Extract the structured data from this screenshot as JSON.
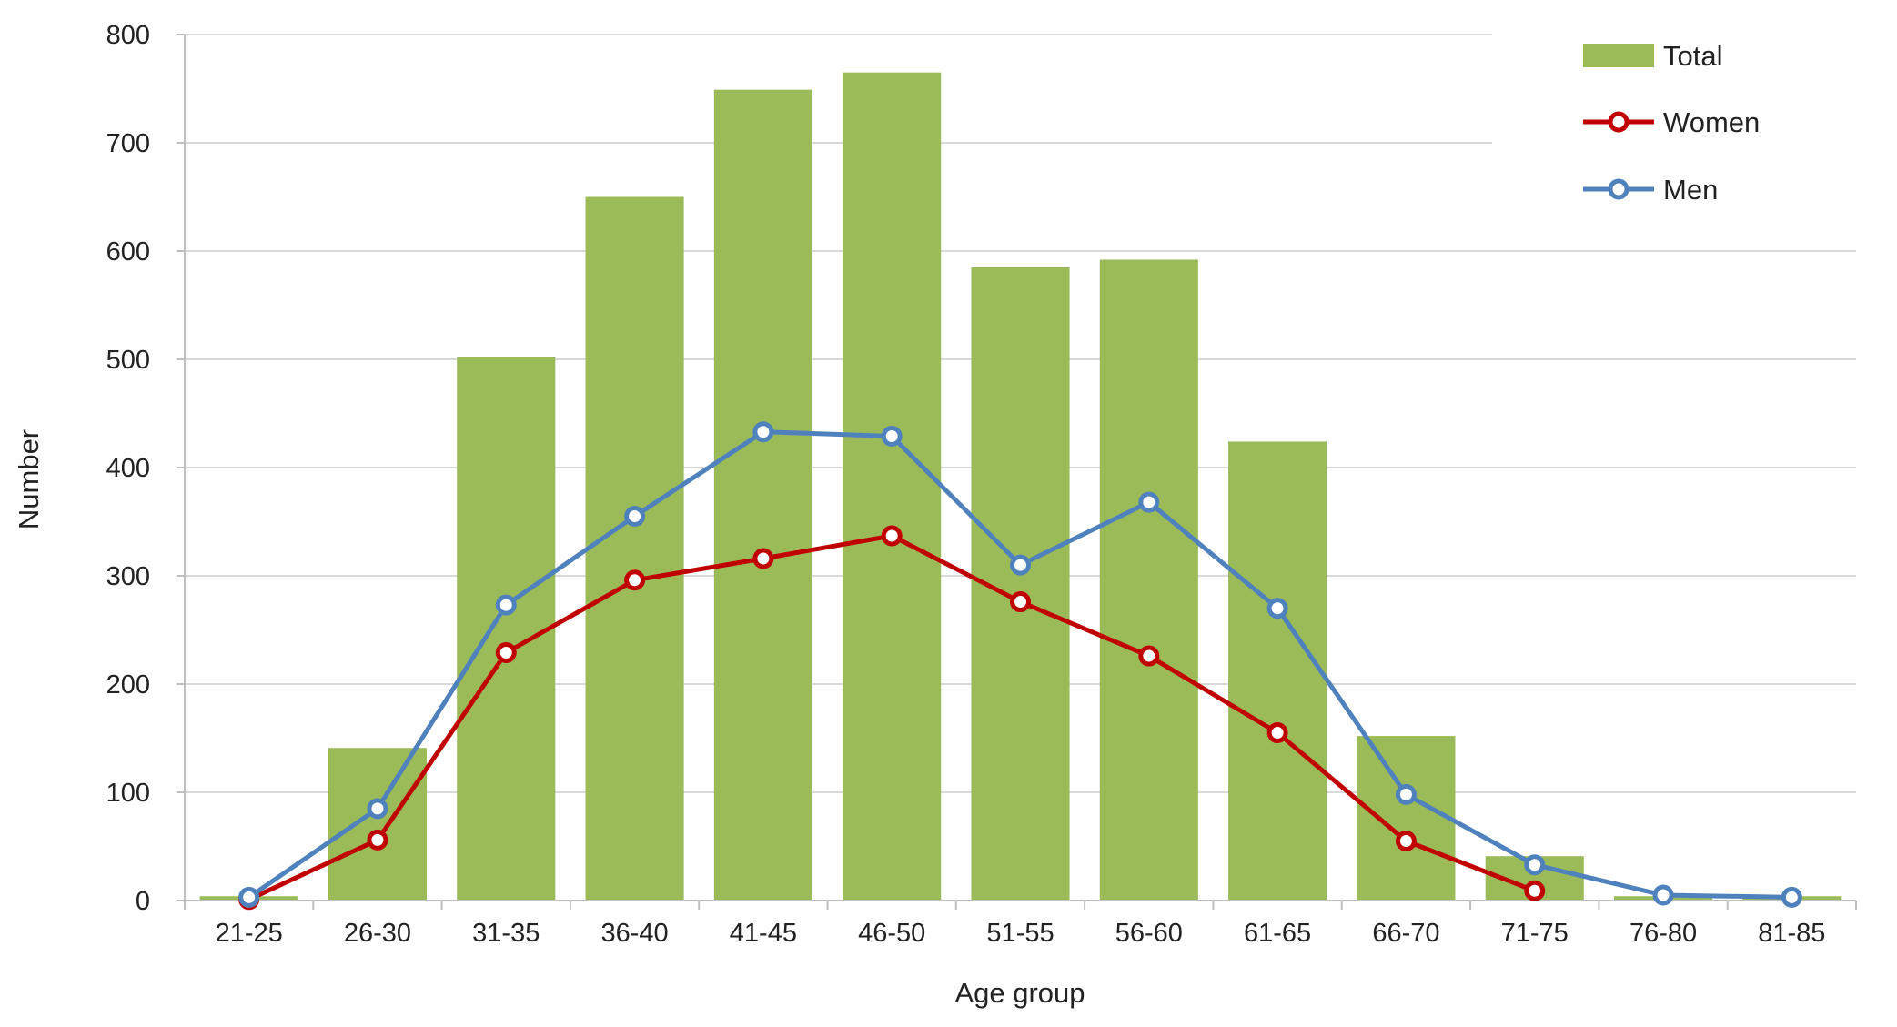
{
  "chart_data": {
    "type": "bar",
    "title": "",
    "xlabel": "Age group",
    "ylabel": "Number",
    "categories": [
      "21-25",
      "26-30",
      "31-35",
      "36-40",
      "41-45",
      "46-50",
      "51-55",
      "56-60",
      "61-65",
      "66-70",
      "71-75",
      "76-80",
      "81-85"
    ],
    "yticks": [
      "0",
      "100",
      "200",
      "300",
      "400",
      "500",
      "600",
      "700",
      "800"
    ],
    "ylim": [
      0,
      800
    ],
    "grid": true,
    "legend_position": "top-right",
    "series": [
      {
        "name": "Total",
        "kind": "bar",
        "color": "#9BBB59",
        "values": [
          4,
          141,
          502,
          650,
          749,
          765,
          585,
          592,
          424,
          152,
          41,
          4,
          4
        ]
      },
      {
        "name": "Women",
        "kind": "line",
        "color": "#C00000",
        "values": [
          1,
          56,
          229,
          296,
          316,
          337,
          276,
          226,
          155,
          55,
          9,
          null,
          null
        ]
      },
      {
        "name": "Men",
        "kind": "line",
        "color": "#4F81BD",
        "values": [
          3,
          85,
          273,
          355,
          433,
          429,
          310,
          368,
          270,
          98,
          33,
          5,
          3
        ]
      }
    ]
  }
}
